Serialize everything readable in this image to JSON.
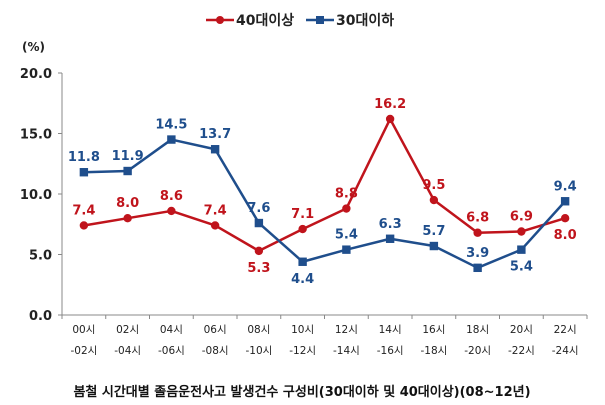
{
  "chart_data": {
    "type": "line",
    "title": "봄철 시간대별 졸음운전사고 발생건수 구성비(30대이하 및 40대이상)(08~12년)",
    "unit_label": "(%)",
    "ylim": [
      0,
      20
    ],
    "yticks": [
      "0.0",
      "5.0",
      "10.0",
      "15.0",
      "20.0"
    ],
    "grid": false,
    "legend_position": "top-center",
    "categories": [
      [
        "00시",
        "-02시"
      ],
      [
        "02시",
        "-04시"
      ],
      [
        "04시",
        "-06시"
      ],
      [
        "06시",
        "-08시"
      ],
      [
        "08시",
        "-10시"
      ],
      [
        "10시",
        "-12시"
      ],
      [
        "12시",
        "-14시"
      ],
      [
        "14시",
        "-16시"
      ],
      [
        "16시",
        "-18시"
      ],
      [
        "18시",
        "-20시"
      ],
      [
        "20시",
        "-22시"
      ],
      [
        "22시",
        "-24시"
      ]
    ],
    "series": [
      {
        "name": "40대이상",
        "color": "#c0141c",
        "marker": "circle",
        "values": [
          7.4,
          8.0,
          8.6,
          7.4,
          5.3,
          7.1,
          8.8,
          16.2,
          9.5,
          6.8,
          6.9,
          8.0
        ],
        "labels": [
          "7.4",
          "8.0",
          "8.6",
          "7.4",
          "5.3",
          "7.1",
          "8.8",
          "16.2",
          "9.5",
          "6.8",
          "6.9",
          "8.0"
        ]
      },
      {
        "name": "30대이하",
        "color": "#1f4e8c",
        "marker": "square",
        "values": [
          11.8,
          11.9,
          14.5,
          13.7,
          7.6,
          4.4,
          5.4,
          6.3,
          5.7,
          3.9,
          5.4,
          9.4
        ],
        "labels": [
          "11.8",
          "11.9",
          "14.5",
          "13.7",
          "7.6",
          "4.4",
          "5.4",
          "6.3",
          "5.7",
          "3.9",
          "5.4",
          "9.4"
        ]
      }
    ]
  }
}
